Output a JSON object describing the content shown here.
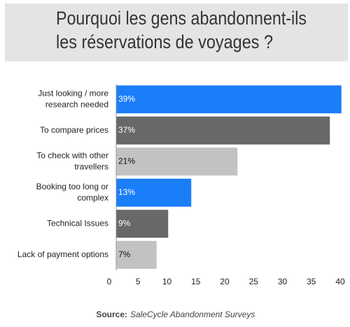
{
  "chart_data": {
    "type": "bar",
    "orientation": "horizontal",
    "title": [
      "Pourquoi les gens abandonnent-ils",
      "les réservations de voyages ?"
    ],
    "categories": [
      "Just looking / more\nresearch needed",
      "To compare prices",
      "To check with other\ntravellers",
      "Booking too long or\ncomplex",
      "Technical Issues",
      "Lack of payment options"
    ],
    "values": [
      39,
      37,
      21,
      13,
      9,
      7
    ],
    "value_labels": [
      "39%",
      "37%",
      "21%",
      "13%",
      "9%",
      "7%"
    ],
    "colors": [
      "#1a7ef8",
      "#686868",
      "#c0c2c4",
      "#1a7ef8",
      "#686868",
      "#c0c2c4"
    ],
    "xlim": [
      0,
      40
    ],
    "xticks": [
      0,
      5,
      10,
      15,
      20,
      25,
      30,
      35,
      40
    ],
    "source_label": "Source:",
    "source": "SaleCycle Abandonment Surveys"
  }
}
